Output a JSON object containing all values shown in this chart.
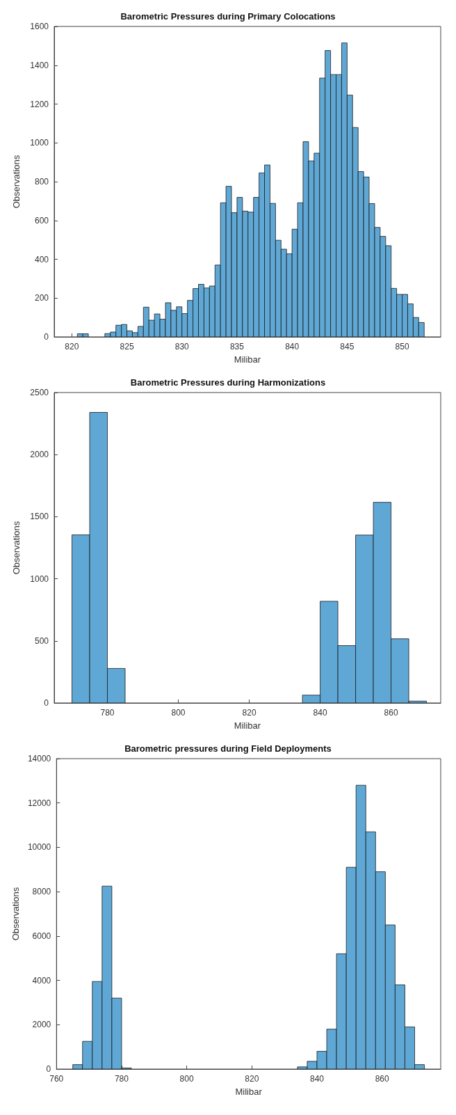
{
  "chart_data": [
    {
      "type": "histogram",
      "title": "Barometric Pressures during Primary Colocations",
      "xlabel": "Milibar",
      "ylabel": "Observations",
      "color": "#5fa8d6",
      "bins": [
        820,
        820.5,
        821,
        821.5,
        822,
        822.5,
        823,
        823.5,
        824,
        824.5,
        825,
        825.5,
        826,
        826.5,
        827,
        827.5,
        828,
        828.5,
        829,
        829.5,
        830,
        830.5,
        831,
        831.5,
        832,
        832.5,
        833,
        833.5,
        834,
        834.5,
        835,
        835.5,
        836,
        836.5,
        837,
        837.5,
        838,
        838.5,
        839,
        839.5,
        840,
        840.5,
        841,
        841.5,
        842,
        842.5,
        843,
        843.5,
        844,
        844.5,
        845,
        845.5,
        846,
        846.5,
        847,
        847.5,
        848,
        848.5,
        849,
        849.5,
        850,
        850.5,
        851,
        851.5,
        852
      ],
      "values": [
        null,
        16,
        16,
        null,
        null,
        null,
        17,
        25,
        60,
        64,
        31,
        22,
        54,
        153,
        86,
        118,
        91,
        176,
        137,
        155,
        120,
        188,
        249,
        271,
        252,
        262,
        370,
        691,
        776,
        640,
        719,
        648,
        643,
        719,
        845,
        886,
        688,
        498,
        452,
        428,
        555,
        691,
        1006,
        907,
        947,
        1334,
        1476,
        1352,
        1352,
        1515,
        1246,
        1079,
        852,
        824,
        687,
        564,
        518,
        470,
        250,
        219,
        219,
        170,
        100,
        74
      ],
      "xlim": [
        818.4,
        853.5
      ],
      "xticks": [
        820,
        825,
        830,
        835,
        840,
        845,
        850
      ],
      "ylim": [
        0,
        1600
      ],
      "yticks": [
        0,
        200,
        400,
        600,
        800,
        1000,
        1200,
        1400,
        1600
      ]
    },
    {
      "type": "histogram",
      "title": "Barometric Pressures during Harmonizations",
      "xlabel": "Milibar",
      "ylabel": "Observations",
      "color": "#5fa8d6",
      "bins": [
        770,
        775,
        780,
        785,
        790,
        795,
        800,
        805,
        810,
        815,
        820,
        825,
        830,
        835,
        840,
        845,
        850,
        855,
        860,
        865,
        870
      ],
      "values": [
        1354,
        2340,
        278,
        0,
        0,
        0,
        0,
        0,
        0,
        0,
        0,
        0,
        0,
        63,
        819,
        462,
        1352,
        1616,
        517,
        15
      ],
      "xlim": [
        765,
        874
      ],
      "xticks": [
        780,
        800,
        820,
        840,
        860
      ],
      "ylim": [
        0,
        2500
      ],
      "yticks": [
        0,
        500,
        1000,
        1500,
        2000,
        2500
      ]
    },
    {
      "type": "histogram",
      "title": "Barometric pressures during Field Deployments",
      "xlabel": "Milibar",
      "ylabel": "Observations",
      "color": "#5fa8d6",
      "bins": [
        765,
        768,
        771,
        774,
        777,
        780,
        783,
        786,
        789,
        792,
        795,
        798,
        801,
        804,
        807,
        810,
        813,
        816,
        819,
        822,
        825,
        828,
        831,
        834,
        837,
        840,
        843,
        846,
        849,
        852,
        855,
        858,
        861,
        864,
        867,
        870,
        873
      ],
      "values": [
        200,
        1250,
        3950,
        8250,
        3200,
        50,
        0,
        0,
        0,
        0,
        0,
        0,
        0,
        0,
        0,
        0,
        0,
        0,
        0,
        0,
        0,
        0,
        0,
        100,
        350,
        800,
        1800,
        5200,
        9100,
        12800,
        10700,
        8900,
        6500,
        3800,
        1900,
        200
      ],
      "xlim": [
        760,
        878
      ],
      "xticks": [
        760,
        780,
        800,
        820,
        840,
        860
      ],
      "ylim": [
        0,
        14000
      ],
      "yticks": [
        0,
        2000,
        4000,
        6000,
        8000,
        10000,
        12000,
        14000
      ]
    }
  ]
}
